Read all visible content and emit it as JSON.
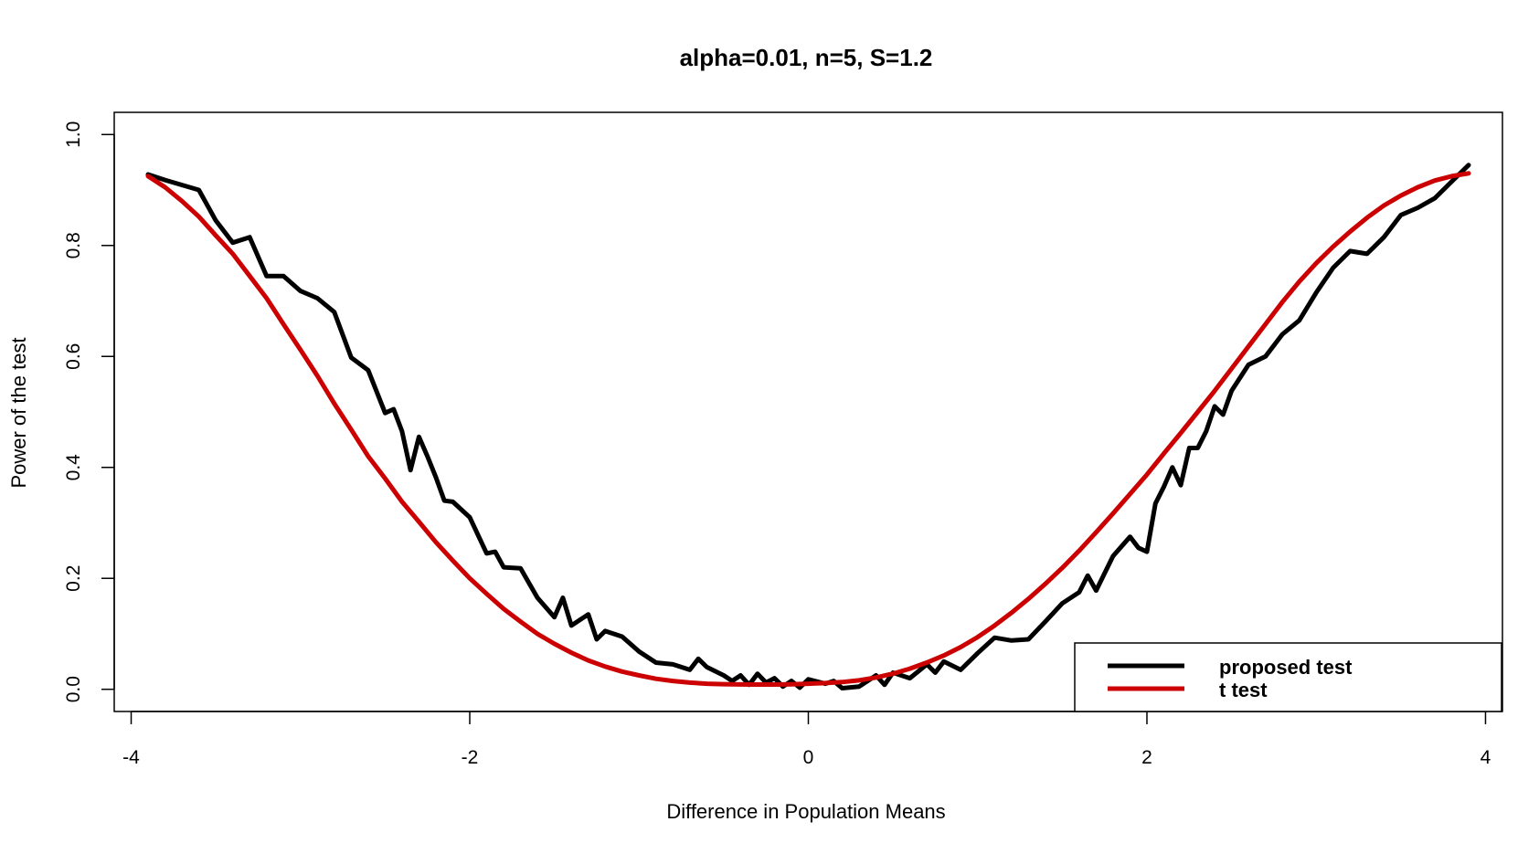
{
  "chart_data": {
    "type": "line",
    "title": "alpha=0.01, n=5, S=1.2",
    "xlabel": "Difference in Population Means",
    "ylabel": "Power of the test",
    "xlim": [
      -4.1,
      4.1
    ],
    "ylim": [
      -0.04,
      1.04
    ],
    "x_ticks": [
      -4,
      -2,
      0,
      2,
      4
    ],
    "x_tick_labels": [
      "-4",
      "-2",
      "0",
      "2",
      "4"
    ],
    "y_ticks": [
      0.0,
      0.2,
      0.4,
      0.6,
      0.8,
      1.0
    ],
    "y_tick_labels": [
      "0.0",
      "0.2",
      "0.4",
      "0.6",
      "0.8",
      "1.0"
    ],
    "legend_position": "bottom-right",
    "series": [
      {
        "name": "proposed test",
        "color": "#000000",
        "x": [
          -3.9,
          -3.8,
          -3.6,
          -3.5,
          -3.4,
          -3.3,
          -3.2,
          -3.1,
          -3.0,
          -2.9,
          -2.8,
          -2.7,
          -2.6,
          -2.5,
          -2.45,
          -2.4,
          -2.35,
          -2.3,
          -2.25,
          -2.2,
          -2.15,
          -2.1,
          -2.0,
          -1.9,
          -1.85,
          -1.8,
          -1.7,
          -1.6,
          -1.5,
          -1.45,
          -1.4,
          -1.3,
          -1.25,
          -1.2,
          -1.1,
          -1.0,
          -0.9,
          -0.8,
          -0.7,
          -0.65,
          -0.6,
          -0.5,
          -0.45,
          -0.4,
          -0.35,
          -0.3,
          -0.25,
          -0.2,
          -0.15,
          -0.1,
          -0.05,
          0.0,
          0.1,
          0.15,
          0.2,
          0.3,
          0.4,
          0.45,
          0.5,
          0.6,
          0.7,
          0.75,
          0.8,
          0.9,
          1.0,
          1.1,
          1.2,
          1.3,
          1.4,
          1.5,
          1.6,
          1.65,
          1.7,
          1.8,
          1.9,
          1.95,
          2.0,
          2.05,
          2.1,
          2.15,
          2.2,
          2.25,
          2.3,
          2.35,
          2.4,
          2.45,
          2.5,
          2.6,
          2.7,
          2.8,
          2.9,
          3.0,
          3.1,
          3.2,
          3.3,
          3.4,
          3.5,
          3.6,
          3.7,
          3.8,
          3.9
        ],
        "values": [
          0.928,
          0.918,
          0.9,
          0.845,
          0.805,
          0.815,
          0.745,
          0.745,
          0.718,
          0.705,
          0.68,
          0.598,
          0.575,
          0.498,
          0.505,
          0.465,
          0.395,
          0.455,
          0.42,
          0.382,
          0.34,
          0.338,
          0.31,
          0.245,
          0.248,
          0.22,
          0.218,
          0.165,
          0.13,
          0.165,
          0.115,
          0.135,
          0.09,
          0.105,
          0.095,
          0.068,
          0.048,
          0.045,
          0.035,
          0.055,
          0.04,
          0.025,
          0.015,
          0.025,
          0.008,
          0.028,
          0.012,
          0.02,
          0.005,
          0.015,
          0.003,
          0.018,
          0.01,
          0.015,
          0.002,
          0.005,
          0.025,
          0.008,
          0.03,
          0.02,
          0.045,
          0.03,
          0.05,
          0.035,
          0.065,
          0.093,
          0.088,
          0.09,
          0.122,
          0.155,
          0.175,
          0.205,
          0.178,
          0.24,
          0.275,
          0.255,
          0.248,
          0.335,
          0.365,
          0.4,
          0.368,
          0.435,
          0.435,
          0.465,
          0.51,
          0.495,
          0.538,
          0.585,
          0.6,
          0.64,
          0.665,
          0.715,
          0.76,
          0.79,
          0.785,
          0.815,
          0.855,
          0.868,
          0.885,
          0.915,
          0.945
        ]
      },
      {
        "name": "t test",
        "color": "#cc0000",
        "x": [
          -3.9,
          -3.8,
          -3.7,
          -3.6,
          -3.5,
          -3.4,
          -3.3,
          -3.2,
          -3.1,
          -3.0,
          -2.9,
          -2.8,
          -2.7,
          -2.6,
          -2.5,
          -2.4,
          -2.3,
          -2.2,
          -2.1,
          -2.0,
          -1.9,
          -1.8,
          -1.7,
          -1.6,
          -1.5,
          -1.4,
          -1.3,
          -1.2,
          -1.1,
          -1.0,
          -0.9,
          -0.8,
          -0.7,
          -0.6,
          -0.5,
          -0.4,
          -0.3,
          -0.2,
          -0.1,
          0.0,
          0.1,
          0.2,
          0.3,
          0.4,
          0.5,
          0.6,
          0.7,
          0.8,
          0.9,
          1.0,
          1.1,
          1.2,
          1.3,
          1.4,
          1.5,
          1.6,
          1.7,
          1.8,
          1.9,
          2.0,
          2.1,
          2.2,
          2.3,
          2.4,
          2.5,
          2.6,
          2.7,
          2.8,
          2.9,
          3.0,
          3.1,
          3.2,
          3.3,
          3.4,
          3.5,
          3.6,
          3.7,
          3.8,
          3.9
        ],
        "values": [
          0.925,
          0.905,
          0.88,
          0.852,
          0.818,
          0.785,
          0.745,
          0.705,
          0.658,
          0.612,
          0.565,
          0.515,
          0.468,
          0.42,
          0.38,
          0.338,
          0.302,
          0.265,
          0.232,
          0.2,
          0.172,
          0.145,
          0.122,
          0.1,
          0.082,
          0.066,
          0.052,
          0.041,
          0.032,
          0.025,
          0.019,
          0.015,
          0.012,
          0.01,
          0.0092,
          0.0088,
          0.0085,
          0.0086,
          0.009,
          0.01,
          0.0112,
          0.013,
          0.0162,
          0.0212,
          0.0282,
          0.0372,
          0.0482,
          0.061,
          0.076,
          0.094,
          0.115,
          0.138,
          0.163,
          0.19,
          0.219,
          0.25,
          0.283,
          0.317,
          0.352,
          0.387,
          0.425,
          0.462,
          0.5,
          0.538,
          0.578,
          0.618,
          0.658,
          0.698,
          0.735,
          0.768,
          0.798,
          0.825,
          0.85,
          0.872,
          0.89,
          0.905,
          0.917,
          0.925,
          0.93
        ]
      }
    ]
  }
}
